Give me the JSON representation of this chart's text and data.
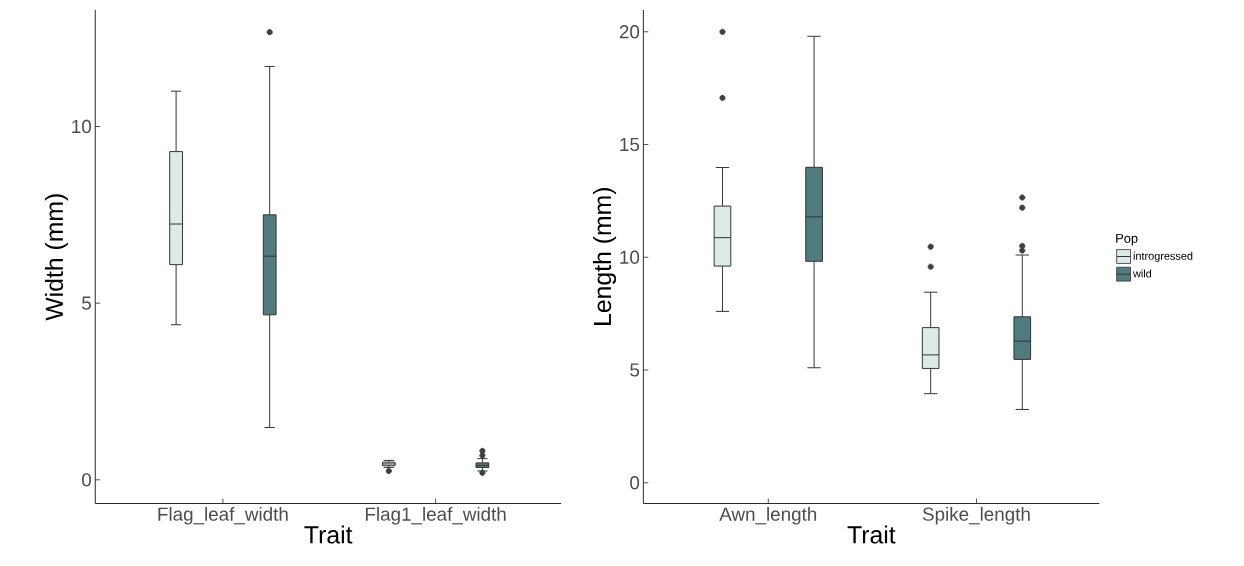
{
  "chart_data": [
    {
      "type": "box",
      "xlabel": "Trait",
      "ylabel": "Width (mm)",
      "categories": [
        "Flag_leaf_width",
        "Flag1_leaf_width"
      ],
      "ylim": [
        -0.67,
        13.3
      ],
      "yticks": [
        0,
        5,
        10
      ],
      "marker": "circle",
      "series": [
        {
          "color": "#dcebea",
          "boxes": [
            {
              "low": 4.39,
              "q1": 6.09,
              "median": 7.24,
              "q3": 9.29,
              "high": 11.0
            },
            {
              "low": 0.35,
              "q1": 0.4,
              "median": 0.45,
              "q3": 0.5,
              "high": 0.55,
              "outliers": [
                0.25
              ]
            }
          ]
        },
        {
          "color": "#517b7e",
          "boxes": [
            {
              "low": 1.48,
              "q1": 4.67,
              "median": 6.33,
              "q3": 7.5,
              "high": 11.7,
              "outliers": [
                12.67
              ]
            },
            {
              "low": 0.25,
              "q1": 0.35,
              "median": 0.41,
              "q3": 0.48,
              "high": 0.6,
              "outliers": [
                0.2,
                0.69,
                0.82
              ]
            }
          ]
        }
      ]
    },
    {
      "type": "box",
      "xlabel": "Trait",
      "ylabel": "Length (mm)",
      "legend_title": "Pop",
      "legend": "right",
      "categories": [
        "Awn_length",
        "Spike_length"
      ],
      "ylim": [
        -0.92,
        20.97
      ],
      "yticks": [
        0,
        5,
        10,
        15,
        20
      ],
      "marker": "circle",
      "series": [
        {
          "name": "introgressed",
          "color": "#dcebea",
          "boxes": [
            {
              "low": 7.6,
              "q1": 9.61,
              "median": 10.87,
              "q3": 12.27,
              "high": 13.98,
              "outliers": [
                17.07,
                20.0
              ]
            },
            {
              "low": 3.95,
              "q1": 5.07,
              "median": 5.67,
              "q3": 6.88,
              "high": 8.45,
              "outliers": [
                9.58,
                10.47
              ]
            }
          ]
        },
        {
          "name": "wild",
          "color": "#517b7e",
          "boxes": [
            {
              "low": 5.1,
              "q1": 9.82,
              "median": 11.79,
              "q3": 13.99,
              "high": 19.8
            },
            {
              "low": 3.25,
              "q1": 5.47,
              "median": 6.28,
              "q3": 7.36,
              "high": 10.1,
              "outliers": [
                10.3,
                10.5,
                12.2,
                12.65
              ]
            }
          ]
        }
      ]
    }
  ]
}
